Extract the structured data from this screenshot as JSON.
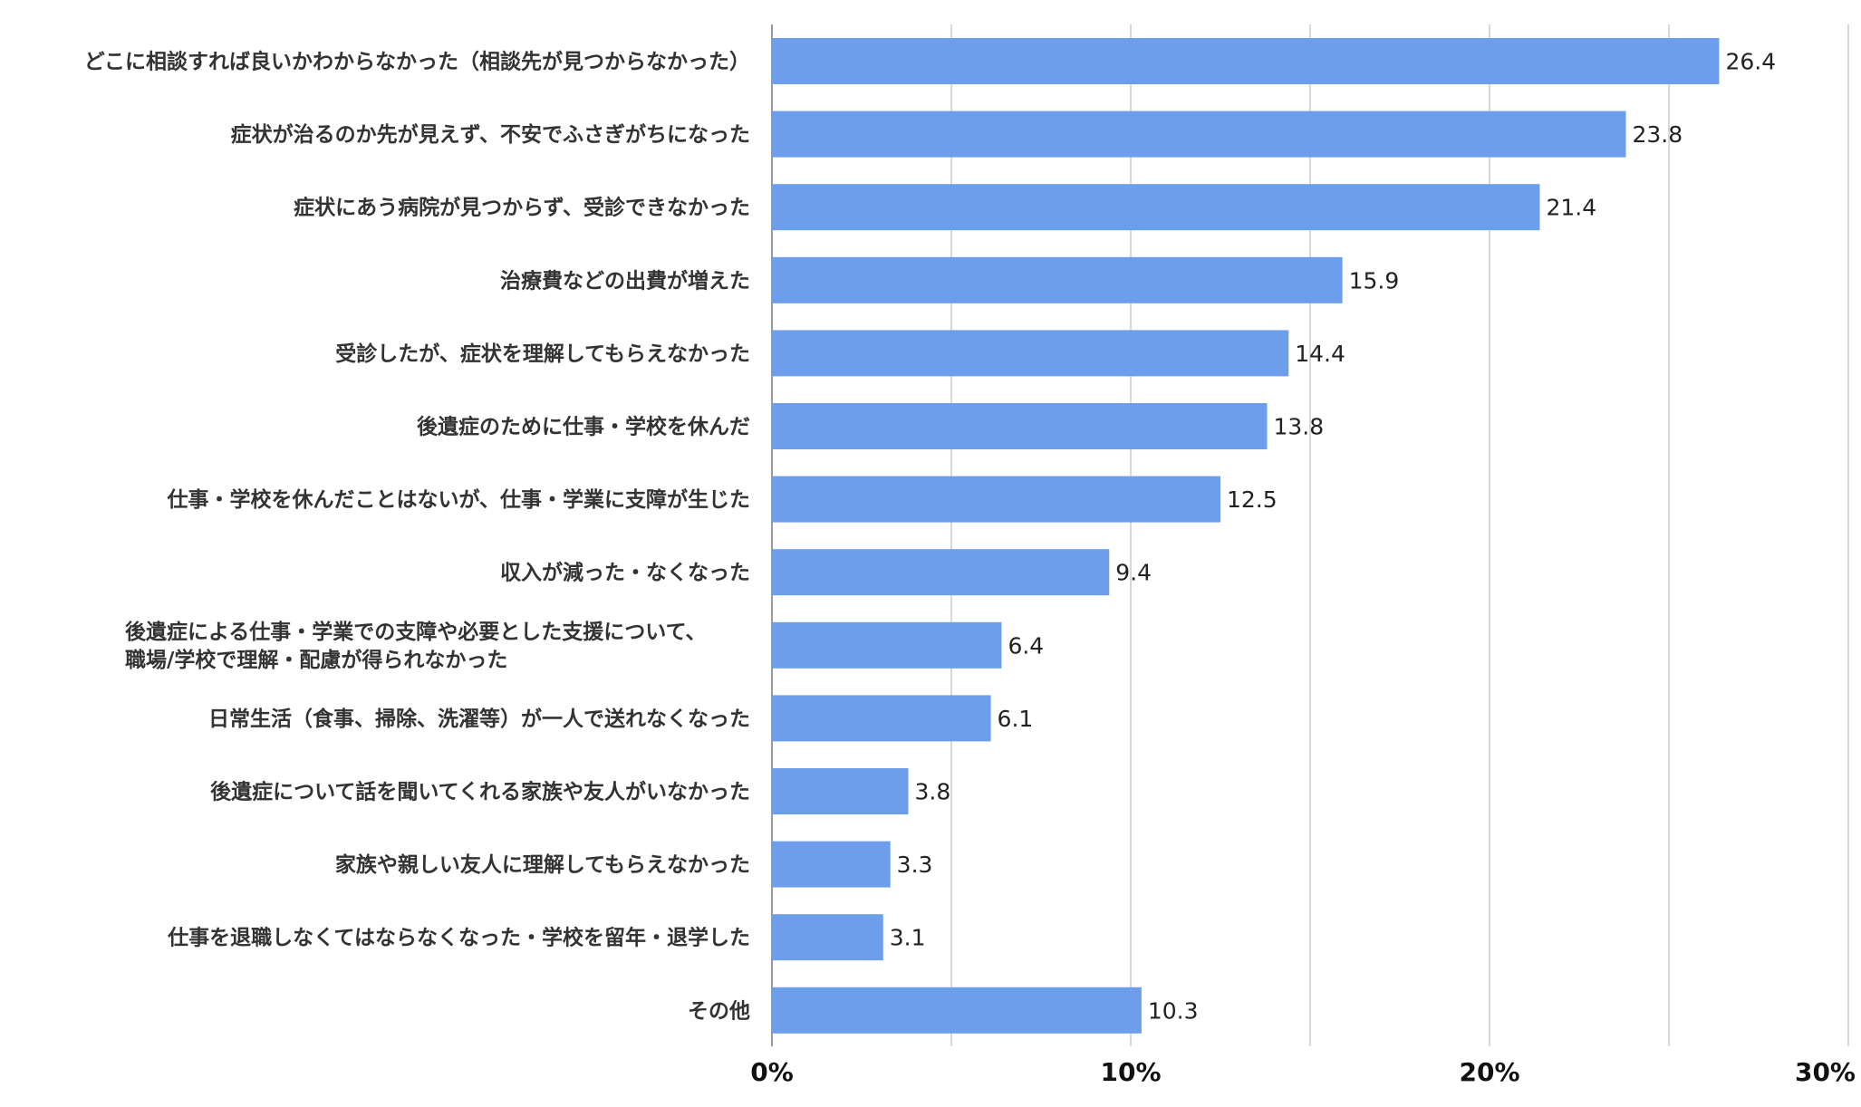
{
  "chart_data": {
    "type": "bar",
    "orientation": "horizontal",
    "title": "",
    "xlabel": "",
    "ylabel": "",
    "categories": [
      [
        "どこに相談すれば良いかわからなかった（相談先が見つからなかった）"
      ],
      [
        "症状が治るのか先が見えず、不安でふさぎがちになった"
      ],
      [
        "症状にあう病院が見つからず、受診できなかった"
      ],
      [
        "治療費などの出費が増えた"
      ],
      [
        "受診したが、症状を理解してもらえなかった"
      ],
      [
        "後遺症のために仕事・学校を休んだ"
      ],
      [
        "仕事・学校を休んだことはないが、仕事・学業に支障が生じた"
      ],
      [
        "収入が減った・なくなった"
      ],
      [
        "後遺症による仕事・学業での支障や必要とした支援について、",
        "職場/学校で理解・配慮が得られなかった"
      ],
      [
        "日常生活（食事、掃除、洗濯等）が一人で送れなくなった"
      ],
      [
        "後遺症について話を聞いてくれる家族や友人がいなかった"
      ],
      [
        "家族や親しい友人に理解してもらえなかった"
      ],
      [
        "仕事を退職しなくてはならなくなった・学校を留年・退学した"
      ],
      [
        "その他"
      ]
    ],
    "values": [
      26.4,
      23.8,
      21.4,
      15.9,
      14.4,
      13.8,
      12.5,
      9.4,
      6.4,
      6.1,
      3.8,
      3.3,
      3.1,
      10.3
    ],
    "value_labels": [
      "26.4",
      "23.8",
      "21.4",
      "15.9",
      "14.4",
      "13.8",
      "12.5",
      "9.4",
      "6.4",
      "6.1",
      "3.8",
      "3.3",
      "3.1",
      "10.3"
    ],
    "xlim": [
      0,
      30
    ],
    "xticks": [
      0,
      10,
      20,
      30
    ],
    "xtick_labels": [
      "0%",
      "10%",
      "20%",
      "30%"
    ],
    "gridlines": [
      0,
      5,
      10,
      15,
      20,
      25,
      30
    ],
    "grid": true,
    "legend": "none",
    "bar_color": "#6d9eeb",
    "grid_color": "#cccccc",
    "axis_color": "#999999"
  }
}
